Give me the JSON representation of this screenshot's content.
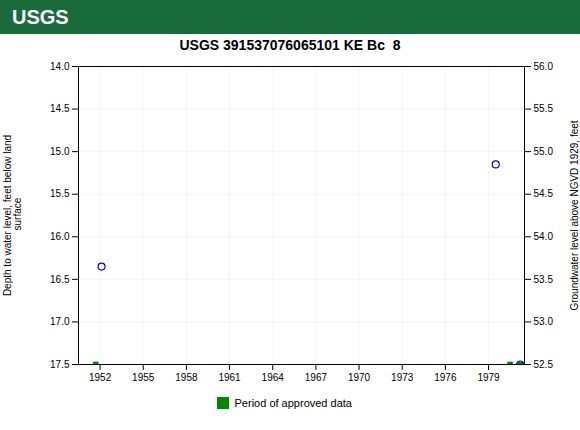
{
  "chart_data": {
    "type": "scatter",
    "title": "USGS 391537076065101 KE Bc  8",
    "annotations": [
      {
        "text": "USGS"
      }
    ],
    "ylabel": "Depth to water level, feet below land\n surface",
    "y2label": "Groundwater level above NGVD 1929, feet",
    "xlim": [
      1950.5,
      1981.5
    ],
    "xticks": [
      1952,
      1955,
      1958,
      1961,
      1964,
      1967,
      1970,
      1973,
      1976,
      1979
    ],
    "ylim": [
      17.5,
      14.0
    ],
    "yticks": [
      {
        "value": 14.0,
        "label": "14.0"
      },
      14.5,
      {
        "value": 15.0,
        "label": "15.0"
      },
      15.5,
      {
        "value": 16.0,
        "label": "16.0"
      },
      16.5,
      {
        "value": 17.0,
        "label": "17.0"
      },
      17.5
    ],
    "y2lim": [
      52.5,
      56.0
    ],
    "y2ticks": [
      52.5,
      {
        "value": 53.0,
        "label": "53.0"
      },
      53.5,
      {
        "value": 54.0,
        "label": "54.0"
      },
      54.5,
      {
        "value": 55.0,
        "label": "55.0"
      },
      55.5,
      {
        "value": 56.0,
        "label": "56.0"
      }
    ],
    "grid": true,
    "legend": "bottom",
    "series": [
      {
        "color": "#0000cc",
        "marker": "circle",
        "x": [
          1952.1,
          1979.5
        ],
        "values": [
          16.35,
          15.15
        ]
      },
      {
        "name": "Period of approved data",
        "color": "#008800",
        "marker": "square",
        "x": [
          1951.7,
          1980.5,
          1981.2
        ],
        "values": [
          17.5,
          17.5,
          17.5
        ]
      },
      {
        "color": "#0000cc",
        "marker": "circle",
        "x": [
          1981.2
        ],
        "values": [
          17.5
        ]
      }
    ]
  }
}
